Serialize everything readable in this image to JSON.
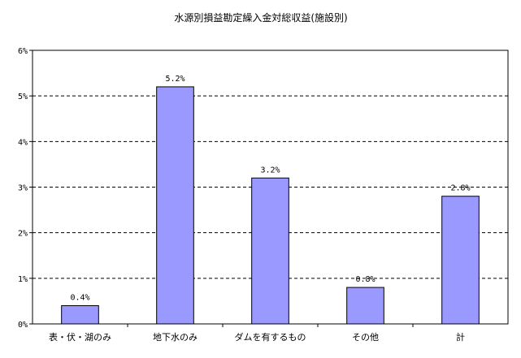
{
  "chart_data": {
    "type": "bar",
    "title": "水源別損益勘定繰入金対総収益(施設別)",
    "categories": [
      "表・伏・湖のみ",
      "地下水のみ",
      "ダムを有するもの",
      "その他",
      "計"
    ],
    "values": [
      0.4,
      5.2,
      3.2,
      0.8,
      2.8
    ],
    "value_labels": [
      "0.4%",
      "5.2%",
      "3.2%",
      "0.8%",
      "2.8%"
    ],
    "yticks": [
      0,
      1,
      2,
      3,
      4,
      5,
      6
    ],
    "ytick_labels": [
      "0%",
      "1%",
      "2%",
      "3%",
      "4%",
      "5%",
      "6%"
    ],
    "ylim": [
      0,
      6
    ],
    "xlabel": "",
    "ylabel": "",
    "grid": true,
    "legend": "none",
    "bar_color": "#9999ff"
  }
}
